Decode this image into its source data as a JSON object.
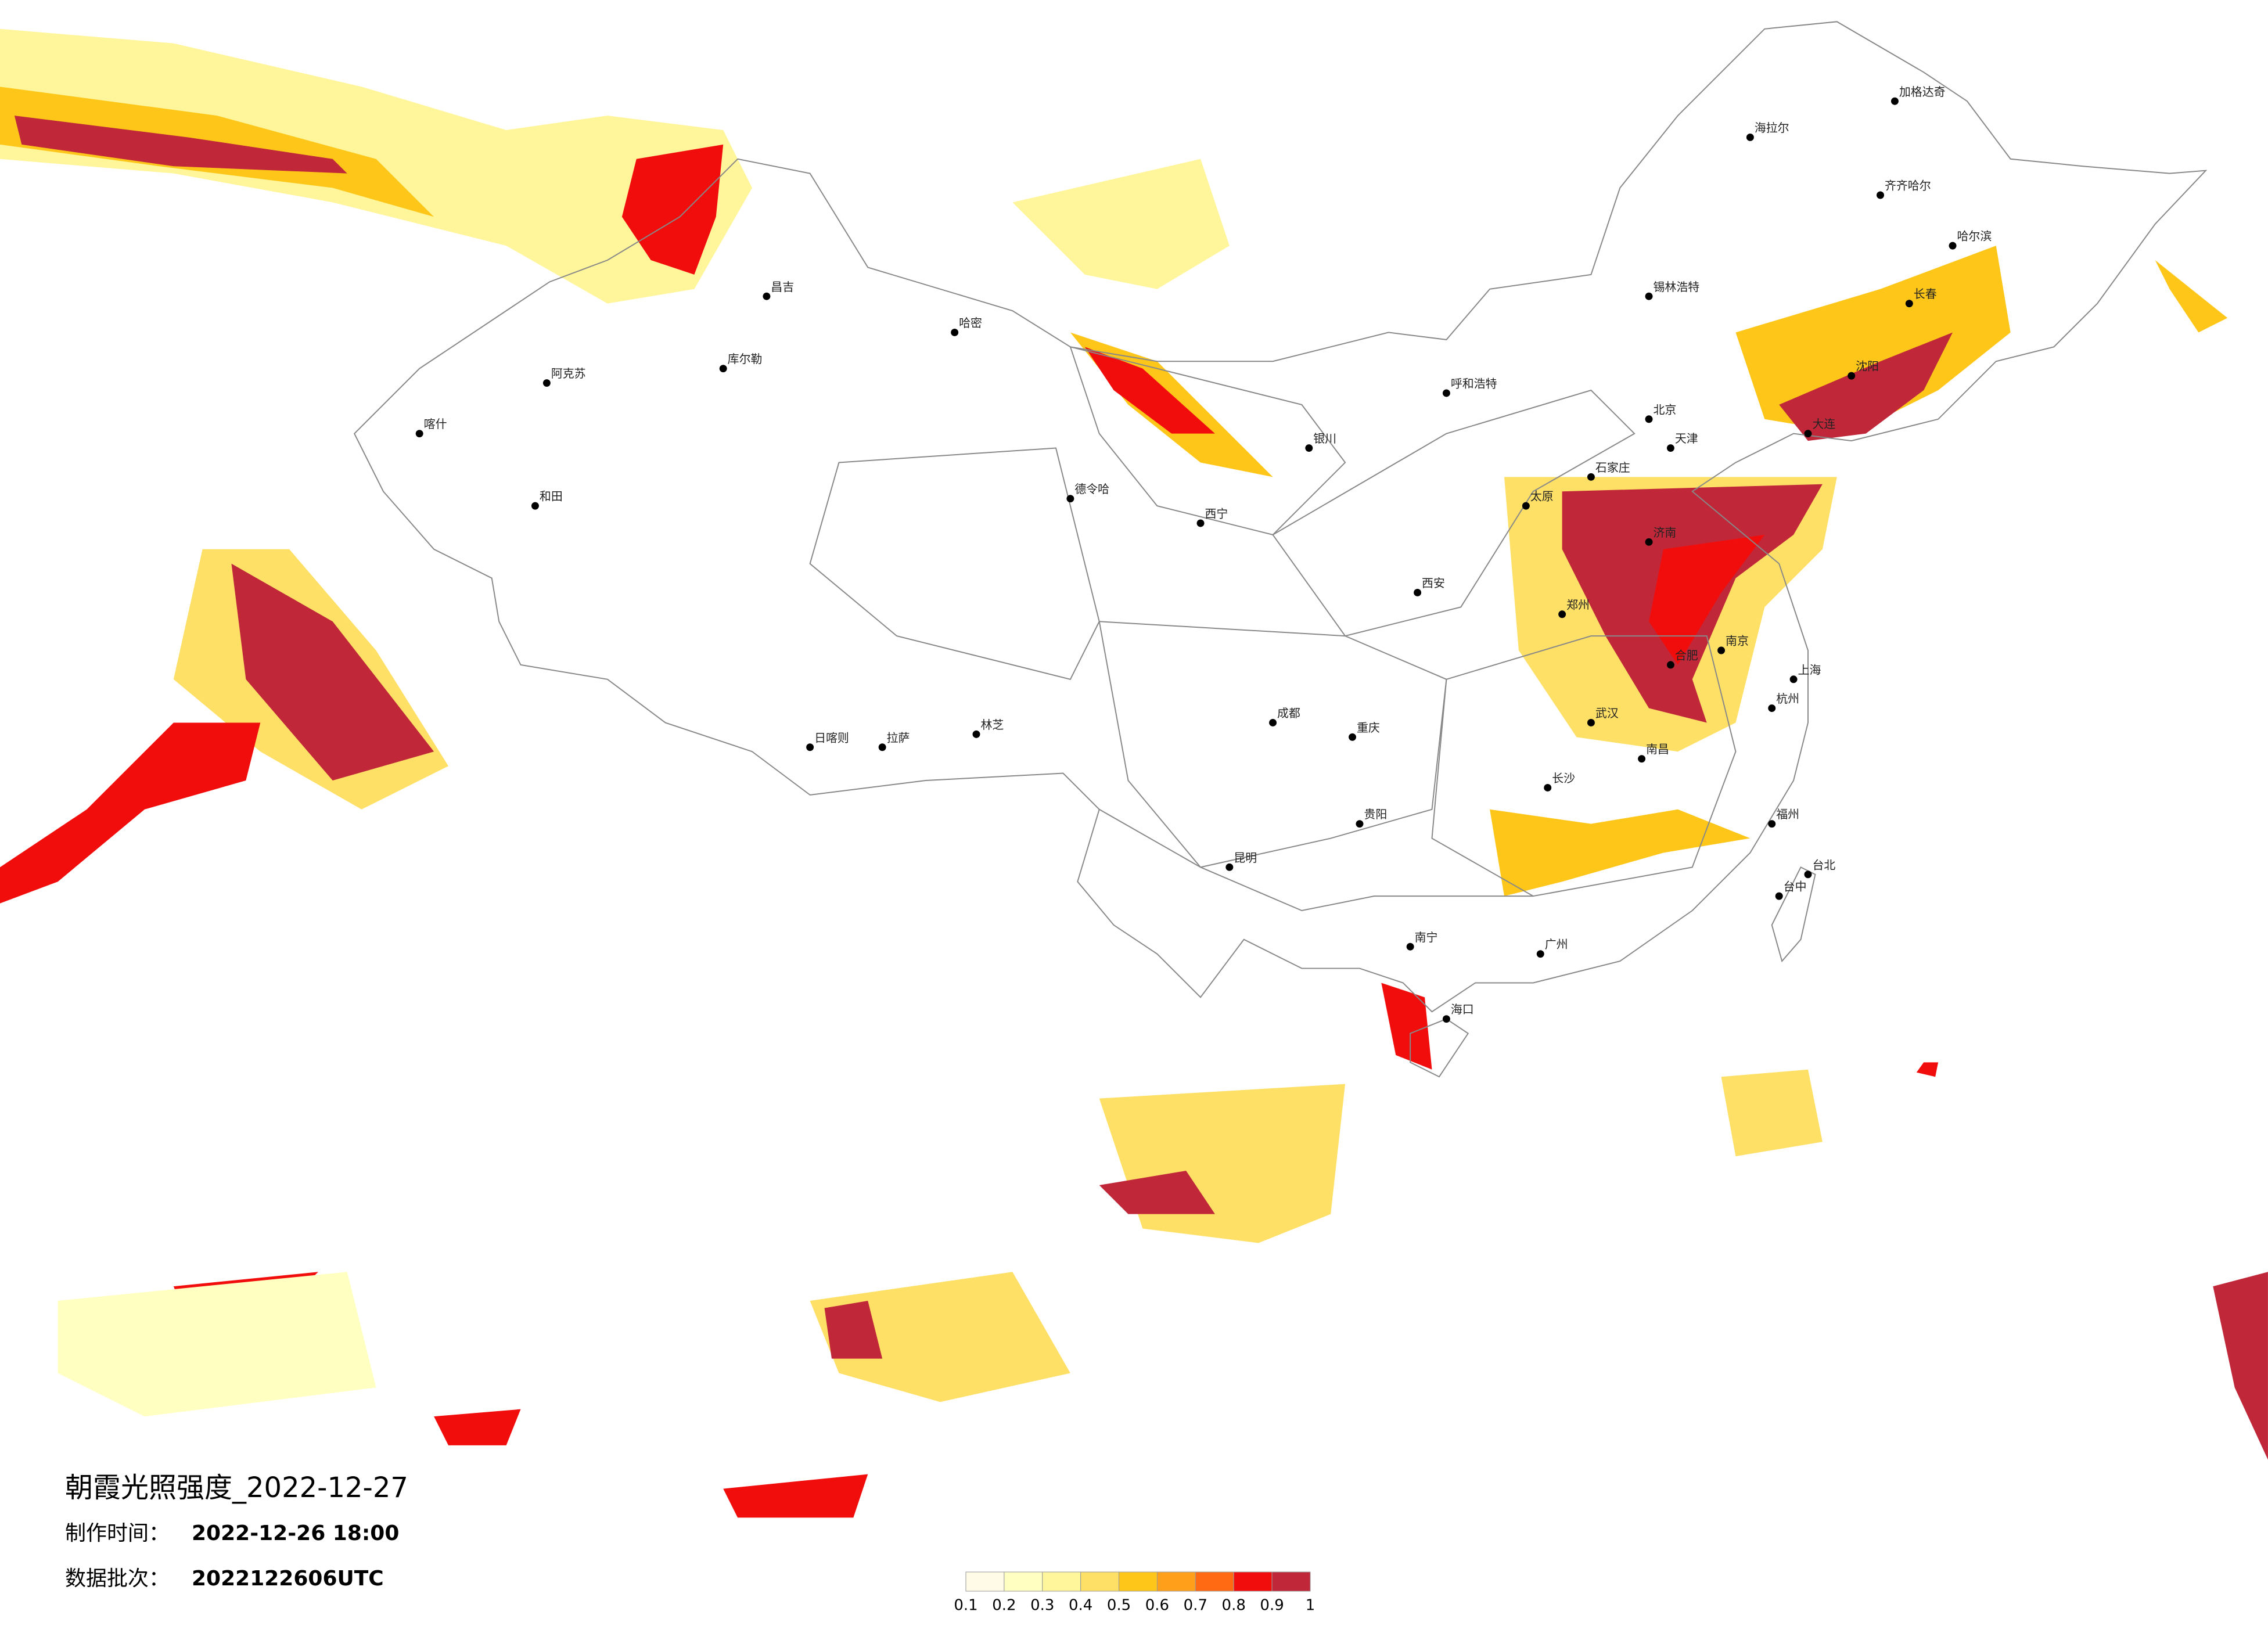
{
  "title": "朝霞光照强度_2022-12-27",
  "made_time": {
    "label": "制作时间：",
    "value": "2022-12-26 18:00"
  },
  "batch": {
    "label": "数据批次：",
    "value": "2022122606UTC"
  },
  "colorbar": {
    "ticks": [
      0.1,
      0.2,
      0.3,
      0.4,
      0.5,
      0.6,
      0.7,
      0.8,
      0.9,
      1
    ],
    "colors": [
      "#fffbe6",
      "#ffffc2",
      "#fff59a",
      "#ffe066",
      "#ffc61a",
      "#ff9f1a",
      "#ff6a13",
      "#f20d0d",
      "#c0283a"
    ]
  },
  "cities": [
    "喀什",
    "阿克苏",
    "和田",
    "库尔勒",
    "昌吉",
    "哈密",
    "德令哈",
    "日喀则",
    "拉萨",
    "林芝",
    "西宁",
    "银川",
    "呼和浩特",
    "北京",
    "天津",
    "石家庄",
    "太原",
    "济南",
    "郑州",
    "西安",
    "合肥",
    "南京",
    "上海",
    "杭州",
    "武汉",
    "南昌",
    "长沙",
    "福州",
    "台北",
    "台中",
    "广州",
    "南宁",
    "海口",
    "昆明",
    "贵阳",
    "成都",
    "重庆",
    "沈阳",
    "大连",
    "长春",
    "哈尔滨",
    "齐齐哈尔",
    "海拉尔",
    "加格达奇",
    "锡林浩特"
  ]
}
